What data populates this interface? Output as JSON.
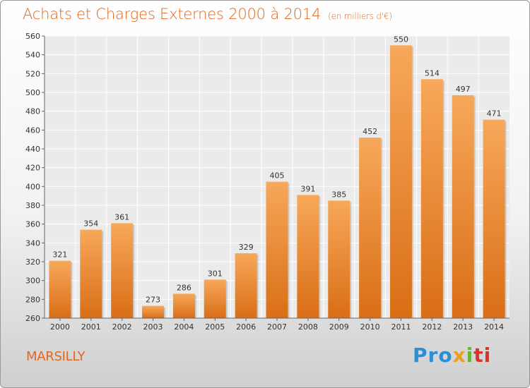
{
  "title": "Achats et Charges Externes 2000 à 2014",
  "unit": "(en milliers d'€)",
  "place": "MARSILLY",
  "logo": {
    "parts": [
      "Pro",
      "x",
      "i",
      "ti"
    ],
    "colors": [
      "#2b8fd6",
      "#e8a022",
      "#6ab43a",
      "#d9342b"
    ]
  },
  "colors": {
    "bar_top": "#f7a85a",
    "bar_bottom": "#d96e16",
    "text_accent": "#e0671e"
  },
  "chart_data": {
    "type": "bar",
    "categories": [
      "2000",
      "2001",
      "2002",
      "2003",
      "2004",
      "2005",
      "2006",
      "2007",
      "2008",
      "2009",
      "2010",
      "2011",
      "2012",
      "2013",
      "2014"
    ],
    "values": [
      321,
      354,
      361,
      273,
      286,
      301,
      329,
      405,
      391,
      385,
      452,
      550,
      514,
      497,
      471
    ],
    "ylim": [
      260,
      560
    ],
    "yticks": [
      260,
      280,
      300,
      320,
      340,
      360,
      380,
      400,
      420,
      440,
      460,
      480,
      500,
      520,
      540,
      560
    ],
    "grid": true
  }
}
